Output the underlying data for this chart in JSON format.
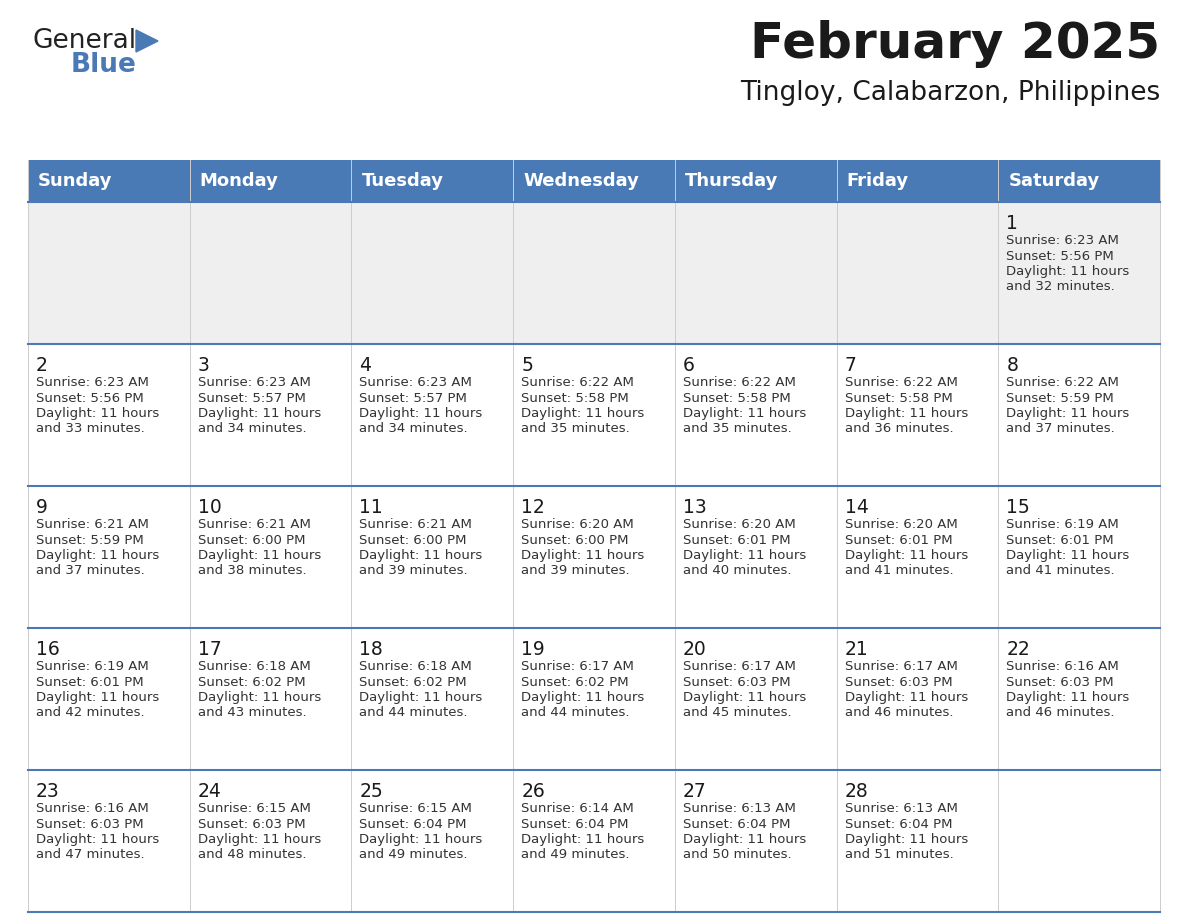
{
  "title": "February 2025",
  "subtitle": "Tingloy, Calabarzon, Philippines",
  "header_color": "#4a7ab5",
  "header_text_color": "#FFFFFF",
  "border_color": "#4a7ab5",
  "day_num_color": "#1a1a1a",
  "text_color": "#333333",
  "row0_bg": "#EFEFEF",
  "row_bg": "#FFFFFF",
  "days_of_week": [
    "Sunday",
    "Monday",
    "Tuesday",
    "Wednesday",
    "Thursday",
    "Friday",
    "Saturday"
  ],
  "calendar_data": [
    [
      {
        "day": "",
        "sunrise": "",
        "sunset": "",
        "daylight_h": "",
        "daylight_m": ""
      },
      {
        "day": "",
        "sunrise": "",
        "sunset": "",
        "daylight_h": "",
        "daylight_m": ""
      },
      {
        "day": "",
        "sunrise": "",
        "sunset": "",
        "daylight_h": "",
        "daylight_m": ""
      },
      {
        "day": "",
        "sunrise": "",
        "sunset": "",
        "daylight_h": "",
        "daylight_m": ""
      },
      {
        "day": "",
        "sunrise": "",
        "sunset": "",
        "daylight_h": "",
        "daylight_m": ""
      },
      {
        "day": "",
        "sunrise": "",
        "sunset": "",
        "daylight_h": "",
        "daylight_m": ""
      },
      {
        "day": "1",
        "sunrise": "6:23 AM",
        "sunset": "5:56 PM",
        "daylight_h": "11 hours",
        "daylight_m": "and 32 minutes."
      }
    ],
    [
      {
        "day": "2",
        "sunrise": "6:23 AM",
        "sunset": "5:56 PM",
        "daylight_h": "11 hours",
        "daylight_m": "and 33 minutes."
      },
      {
        "day": "3",
        "sunrise": "6:23 AM",
        "sunset": "5:57 PM",
        "daylight_h": "11 hours",
        "daylight_m": "and 34 minutes."
      },
      {
        "day": "4",
        "sunrise": "6:23 AM",
        "sunset": "5:57 PM",
        "daylight_h": "11 hours",
        "daylight_m": "and 34 minutes."
      },
      {
        "day": "5",
        "sunrise": "6:22 AM",
        "sunset": "5:58 PM",
        "daylight_h": "11 hours",
        "daylight_m": "and 35 minutes."
      },
      {
        "day": "6",
        "sunrise": "6:22 AM",
        "sunset": "5:58 PM",
        "daylight_h": "11 hours",
        "daylight_m": "and 35 minutes."
      },
      {
        "day": "7",
        "sunrise": "6:22 AM",
        "sunset": "5:58 PM",
        "daylight_h": "11 hours",
        "daylight_m": "and 36 minutes."
      },
      {
        "day": "8",
        "sunrise": "6:22 AM",
        "sunset": "5:59 PM",
        "daylight_h": "11 hours",
        "daylight_m": "and 37 minutes."
      }
    ],
    [
      {
        "day": "9",
        "sunrise": "6:21 AM",
        "sunset": "5:59 PM",
        "daylight_h": "11 hours",
        "daylight_m": "and 37 minutes."
      },
      {
        "day": "10",
        "sunrise": "6:21 AM",
        "sunset": "6:00 PM",
        "daylight_h": "11 hours",
        "daylight_m": "and 38 minutes."
      },
      {
        "day": "11",
        "sunrise": "6:21 AM",
        "sunset": "6:00 PM",
        "daylight_h": "11 hours",
        "daylight_m": "and 39 minutes."
      },
      {
        "day": "12",
        "sunrise": "6:20 AM",
        "sunset": "6:00 PM",
        "daylight_h": "11 hours",
        "daylight_m": "and 39 minutes."
      },
      {
        "day": "13",
        "sunrise": "6:20 AM",
        "sunset": "6:01 PM",
        "daylight_h": "11 hours",
        "daylight_m": "and 40 minutes."
      },
      {
        "day": "14",
        "sunrise": "6:20 AM",
        "sunset": "6:01 PM",
        "daylight_h": "11 hours",
        "daylight_m": "and 41 minutes."
      },
      {
        "day": "15",
        "sunrise": "6:19 AM",
        "sunset": "6:01 PM",
        "daylight_h": "11 hours",
        "daylight_m": "and 41 minutes."
      }
    ],
    [
      {
        "day": "16",
        "sunrise": "6:19 AM",
        "sunset": "6:01 PM",
        "daylight_h": "11 hours",
        "daylight_m": "and 42 minutes."
      },
      {
        "day": "17",
        "sunrise": "6:18 AM",
        "sunset": "6:02 PM",
        "daylight_h": "11 hours",
        "daylight_m": "and 43 minutes."
      },
      {
        "day": "18",
        "sunrise": "6:18 AM",
        "sunset": "6:02 PM",
        "daylight_h": "11 hours",
        "daylight_m": "and 44 minutes."
      },
      {
        "day": "19",
        "sunrise": "6:17 AM",
        "sunset": "6:02 PM",
        "daylight_h": "11 hours",
        "daylight_m": "and 44 minutes."
      },
      {
        "day": "20",
        "sunrise": "6:17 AM",
        "sunset": "6:03 PM",
        "daylight_h": "11 hours",
        "daylight_m": "and 45 minutes."
      },
      {
        "day": "21",
        "sunrise": "6:17 AM",
        "sunset": "6:03 PM",
        "daylight_h": "11 hours",
        "daylight_m": "and 46 minutes."
      },
      {
        "day": "22",
        "sunrise": "6:16 AM",
        "sunset": "6:03 PM",
        "daylight_h": "11 hours",
        "daylight_m": "and 46 minutes."
      }
    ],
    [
      {
        "day": "23",
        "sunrise": "6:16 AM",
        "sunset": "6:03 PM",
        "daylight_h": "11 hours",
        "daylight_m": "and 47 minutes."
      },
      {
        "day": "24",
        "sunrise": "6:15 AM",
        "sunset": "6:03 PM",
        "daylight_h": "11 hours",
        "daylight_m": "and 48 minutes."
      },
      {
        "day": "25",
        "sunrise": "6:15 AM",
        "sunset": "6:04 PM",
        "daylight_h": "11 hours",
        "daylight_m": "and 49 minutes."
      },
      {
        "day": "26",
        "sunrise": "6:14 AM",
        "sunset": "6:04 PM",
        "daylight_h": "11 hours",
        "daylight_m": "and 49 minutes."
      },
      {
        "day": "27",
        "sunrise": "6:13 AM",
        "sunset": "6:04 PM",
        "daylight_h": "11 hours",
        "daylight_m": "and 50 minutes."
      },
      {
        "day": "28",
        "sunrise": "6:13 AM",
        "sunset": "6:04 PM",
        "daylight_h": "11 hours",
        "daylight_m": "and 51 minutes."
      },
      {
        "day": "",
        "sunrise": "",
        "sunset": "",
        "daylight_h": "",
        "daylight_m": ""
      }
    ]
  ],
  "logo_text_general": "General",
  "logo_text_blue": "Blue",
  "logo_color_general": "#222222",
  "logo_color_blue": "#4a7ab5",
  "logo_triangle_color": "#4a7ab5",
  "fig_width": 11.88,
  "fig_height": 9.18,
  "dpi": 100
}
